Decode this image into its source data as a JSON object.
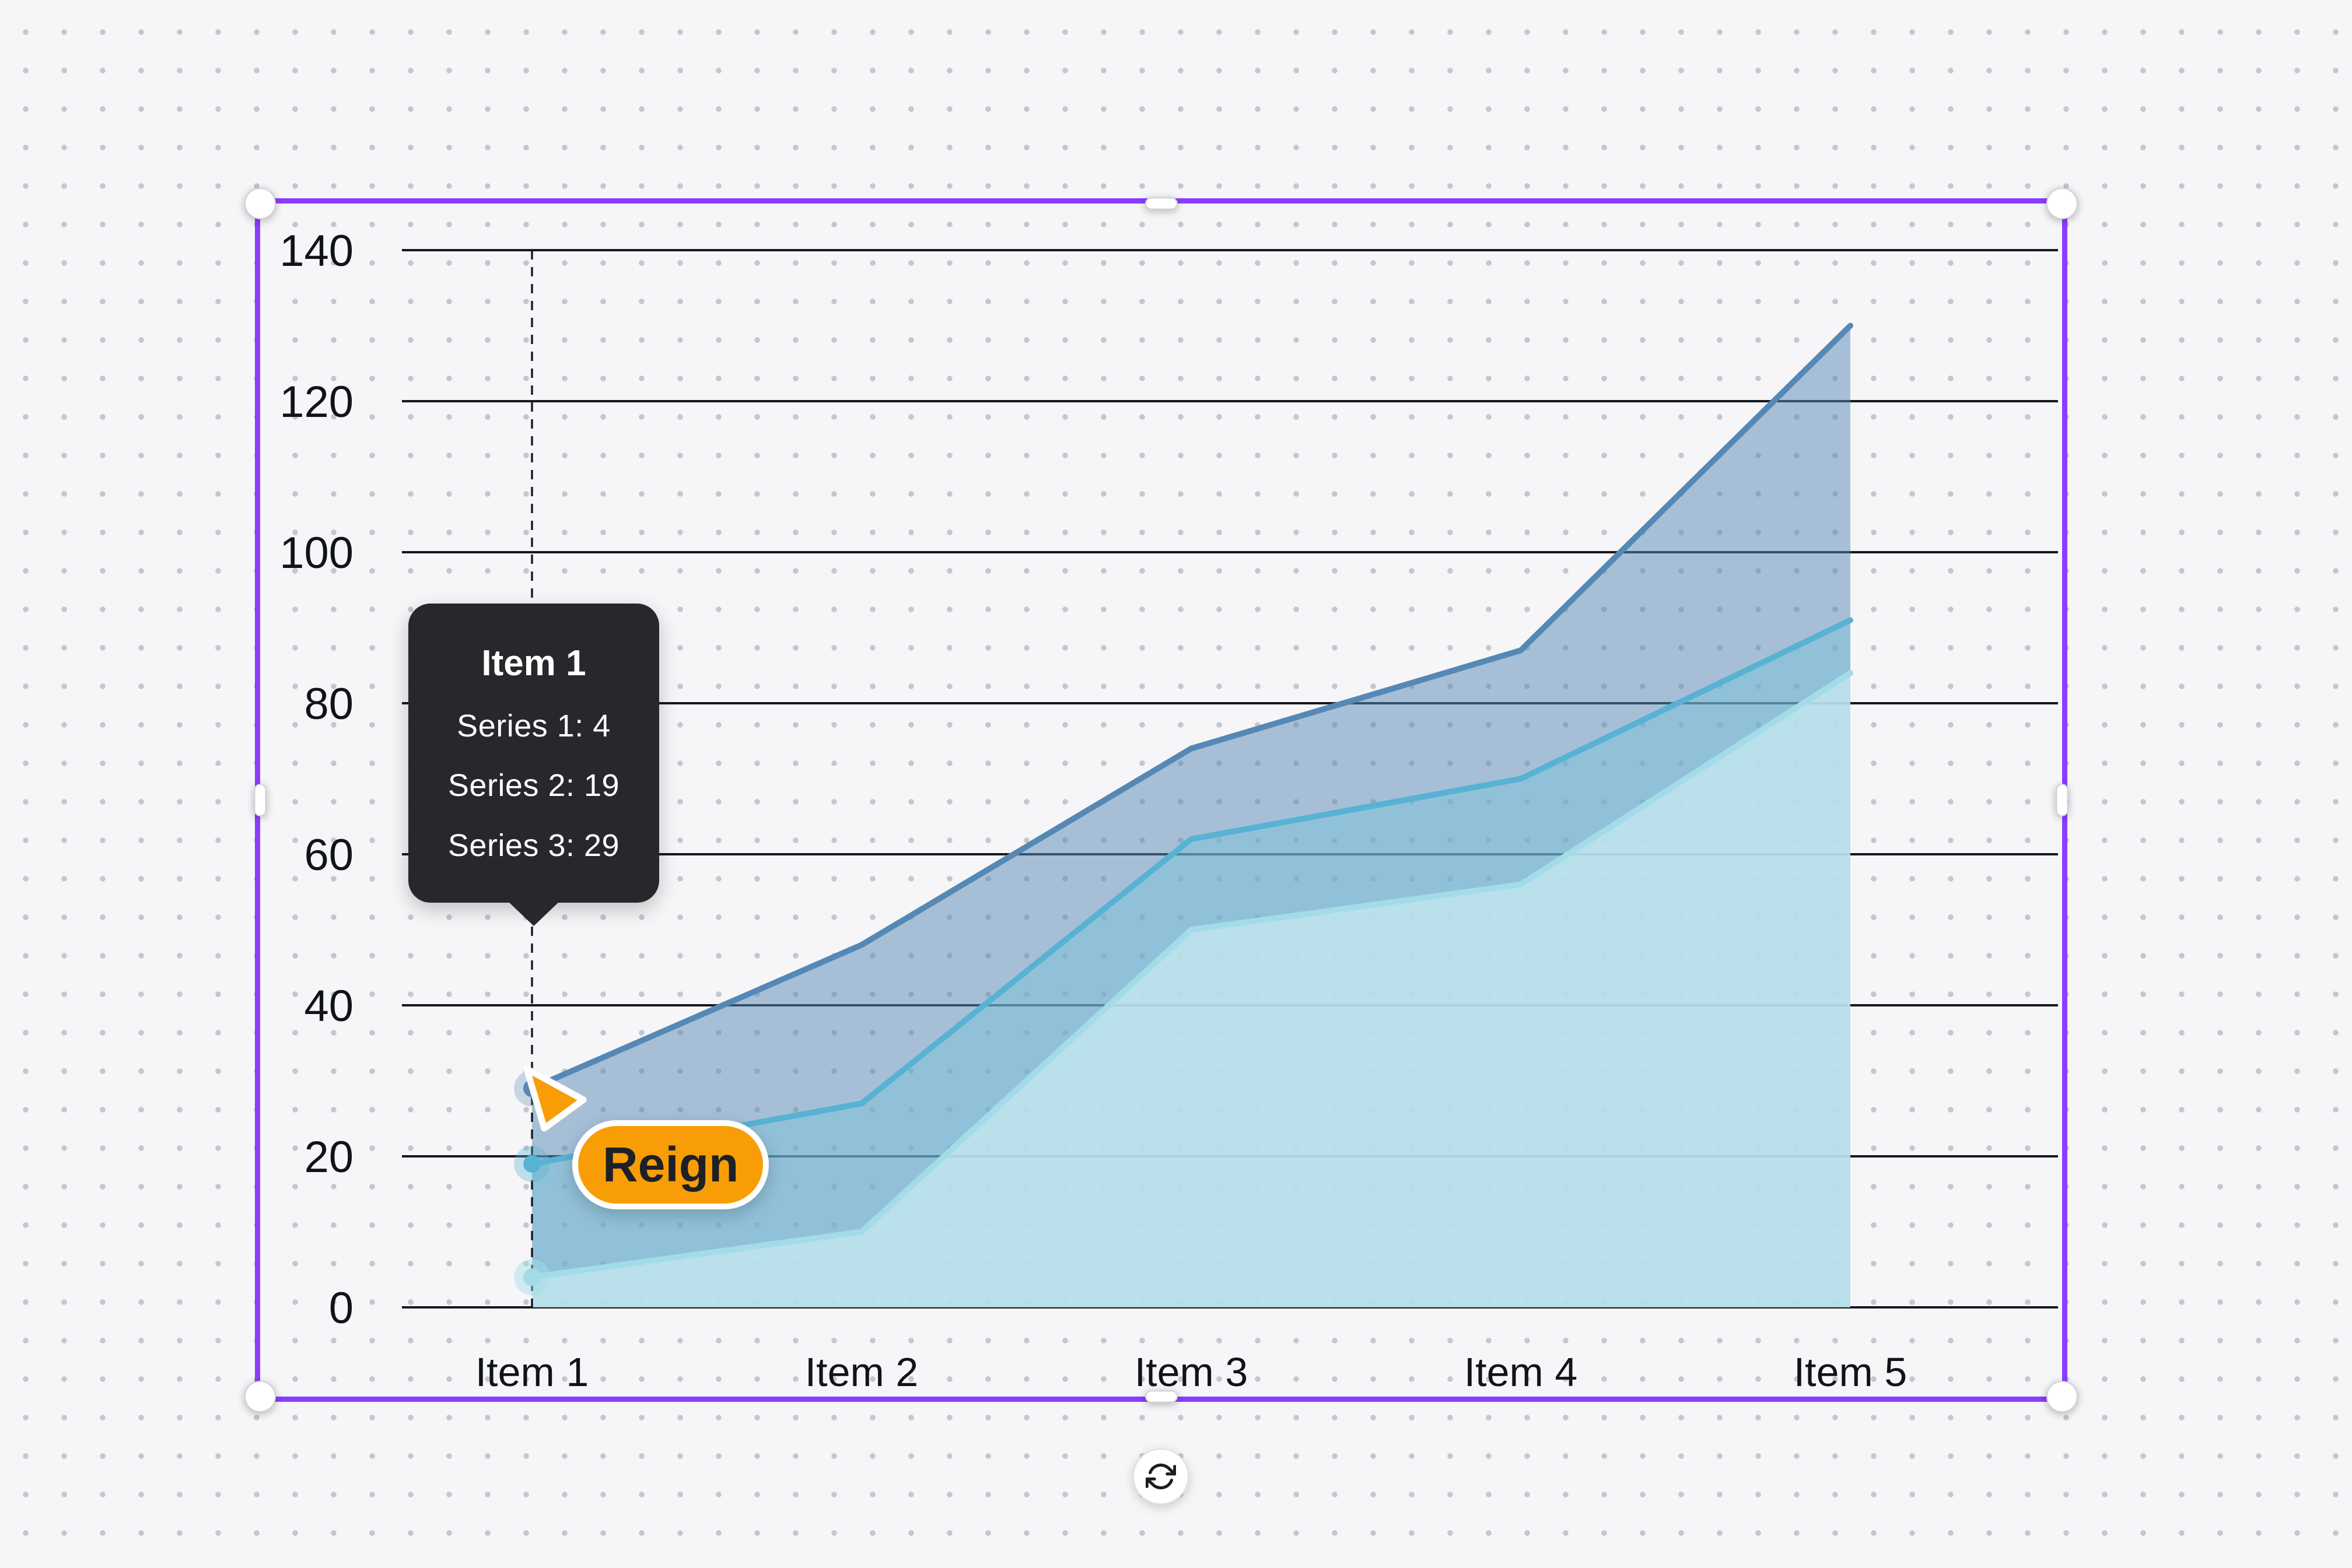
{
  "canvas": {
    "background_color": "#f6f6f8",
    "dot_color": "#c6c6cb"
  },
  "selection": {
    "border_color": "#8b3dff",
    "handle_color": "#ffffff"
  },
  "chart_data": {
    "type": "area",
    "categories": [
      "Item 1",
      "Item 2",
      "Item 3",
      "Item 4",
      "Item 5"
    ],
    "series": [
      {
        "name": "Series 1",
        "values": [
          4,
          10,
          50,
          56,
          84
        ],
        "line_color": "#a3dce8",
        "fill_color": "rgba(196,233,240,0.78)",
        "marker_halo": "rgba(163,220,232,0.45)"
      },
      {
        "name": "Series 2",
        "values": [
          19,
          27,
          62,
          70,
          91
        ],
        "line_color": "#58b2d4",
        "fill_color": "rgba(120,195,220,0.45)",
        "marker_halo": "rgba(88,178,212,0.35)"
      },
      {
        "name": "Series 3",
        "values": [
          29,
          48,
          74,
          87,
          130
        ],
        "line_color": "#5588b5",
        "fill_color": "rgba(85,136,181,0.50)",
        "marker_halo": "rgba(85,136,181,0.30)"
      }
    ],
    "yticks": [
      0,
      20,
      40,
      60,
      80,
      100,
      120,
      140
    ],
    "ylim": [
      0,
      140
    ],
    "xlabel": "",
    "ylabel": "",
    "grid": true,
    "grid_color": "#15181c",
    "label_color": "#101418",
    "legend": "none",
    "hover_item_index": 0,
    "hover_line_color": "#1b1f24"
  },
  "tooltip": {
    "title": "Item 1",
    "rows": [
      "Series 1: 4",
      "Series 2: 19",
      "Series 3: 29"
    ],
    "bg_color": "#26282b",
    "text_color": "#ffffff"
  },
  "cursor": {
    "label": "Reign",
    "color": "#f99d07"
  },
  "icons": {
    "rotate": "rotate-cw"
  }
}
